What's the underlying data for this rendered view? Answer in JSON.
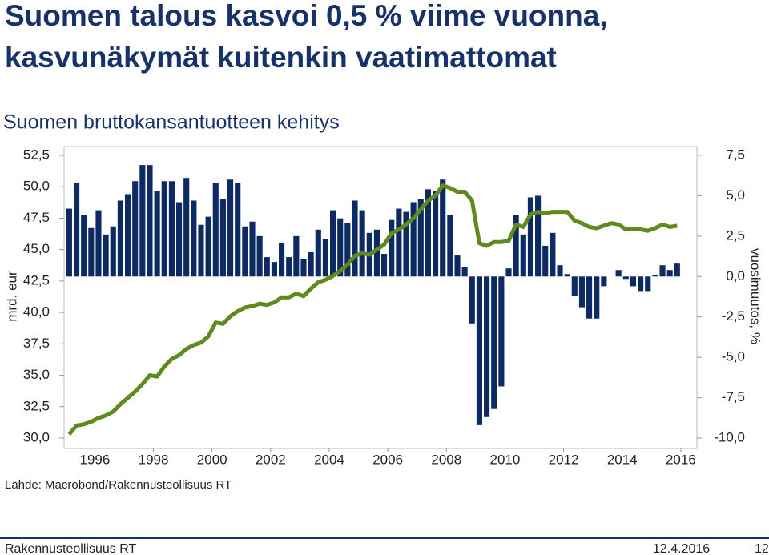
{
  "slide": {
    "title_lines": [
      "Suomen talous kasvoi 0,5 % viime vuonna,",
      "kasvunäkymät kuitenkin vaatimattomat"
    ],
    "footer_left": "Rakennusteollisuus RT",
    "date": "12.4.2016",
    "page_number": 12
  },
  "chart_data": {
    "type": "bar-line",
    "title": "Suomen bruttokansantuotteen kehitys",
    "ylabel": "mrd. eur",
    "y2label": "vuosimuutos, %",
    "source": "Lähde: Macrobond/Rakennusteollisuus RT",
    "x": [
      1995.125,
      1995.375,
      1995.625,
      1995.875,
      1996.125,
      1996.375,
      1996.625,
      1996.875,
      1997.125,
      1997.375,
      1997.625,
      1997.875,
      1998.125,
      1998.375,
      1998.625,
      1998.875,
      1999.125,
      1999.375,
      1999.625,
      1999.875,
      2000.125,
      2000.375,
      2000.625,
      2000.875,
      2001.125,
      2001.375,
      2001.625,
      2001.875,
      2002.125,
      2002.375,
      2002.625,
      2002.875,
      2003.125,
      2003.375,
      2003.625,
      2003.875,
      2004.125,
      2004.375,
      2004.625,
      2004.875,
      2005.125,
      2005.375,
      2005.625,
      2005.875,
      2006.125,
      2006.375,
      2006.625,
      2006.875,
      2007.125,
      2007.375,
      2007.625,
      2007.875,
      2008.125,
      2008.375,
      2008.625,
      2008.875,
      2009.125,
      2009.375,
      2009.625,
      2009.875,
      2010.125,
      2010.375,
      2010.625,
      2010.875,
      2011.125,
      2011.375,
      2011.625,
      2011.875,
      2012.125,
      2012.375,
      2012.625,
      2012.875,
      2013.125,
      2013.375,
      2013.625,
      2013.875,
      2014.125,
      2014.375,
      2014.625,
      2014.875,
      2015.125,
      2015.375,
      2015.625,
      2015.875
    ],
    "series": [
      {
        "type": "bar",
        "axis": "y2",
        "color": "#0d2a63",
        "values": [
          4.2,
          5.8,
          3.8,
          3.0,
          4.1,
          2.6,
          3.1,
          4.7,
          5.1,
          5.9,
          6.9,
          6.9,
          5.3,
          5.9,
          5.9,
          4.6,
          6.1,
          4.7,
          3.2,
          3.7,
          5.8,
          4.8,
          6.0,
          5.8,
          3.1,
          3.4,
          2.5,
          1.2,
          0.9,
          2.1,
          1.2,
          2.5,
          1.1,
          1.5,
          2.9,
          2.3,
          4.1,
          3.6,
          3.3,
          4.7,
          4.1,
          2.7,
          2.9,
          1.4,
          3.5,
          4.2,
          4.0,
          4.6,
          4.8,
          5.4,
          5.3,
          6.0,
          3.8,
          1.3,
          0.6,
          -2.9,
          -9.2,
          -8.7,
          -8.2,
          -6.8,
          0.5,
          3.8,
          2.6,
          4.9,
          5.0,
          1.9,
          2.7,
          0.7,
          0.15,
          -1.2,
          -1.9,
          -2.6,
          -2.6,
          -0.6,
          0.0,
          0.4,
          -0.15,
          -0.6,
          -0.9,
          -0.9,
          0.1,
          0.7,
          0.4,
          0.8
        ]
      },
      {
        "type": "line",
        "axis": "y",
        "color": "#5e8a1e",
        "values": [
          30.3,
          31.0,
          31.1,
          31.3,
          31.6,
          31.8,
          32.1,
          32.7,
          33.2,
          33.7,
          34.3,
          35.0,
          34.9,
          35.7,
          36.3,
          36.6,
          37.1,
          37.4,
          37.6,
          38.1,
          39.2,
          39.1,
          39.7,
          40.1,
          40.4,
          40.5,
          40.7,
          40.6,
          40.8,
          41.2,
          41.2,
          41.5,
          41.3,
          41.9,
          42.4,
          42.6,
          42.9,
          43.3,
          43.8,
          44.5,
          44.7,
          44.6,
          45.0,
          45.4,
          46.3,
          46.6,
          47.0,
          47.5,
          48.2,
          48.9,
          49.3,
          50.1,
          49.9,
          49.6,
          49.6,
          48.9,
          45.5,
          45.3,
          45.6,
          45.6,
          45.7,
          47.0,
          46.8,
          47.8,
          48.0,
          47.9,
          48.0,
          48.0,
          48.0,
          47.3,
          47.1,
          46.8,
          46.7,
          46.9,
          47.1,
          47.0,
          46.6,
          46.6,
          46.6,
          46.5,
          46.7,
          47.0,
          46.8,
          46.9
        ]
      }
    ],
    "xlim": [
      1994.95,
      2016.55
    ],
    "xticks": [
      1996,
      1998,
      2000,
      2002,
      2004,
      2006,
      2008,
      2010,
      2012,
      2014,
      2016
    ],
    "ylim": [
      30,
      52.5
    ],
    "yticks": [
      {
        "value": 30,
        "label": "30,0"
      },
      {
        "value": 32.5,
        "label": "32,5"
      },
      {
        "value": 35,
        "label": "35,0"
      },
      {
        "value": 37.5,
        "label": "37,5"
      },
      {
        "value": 40,
        "label": "40,0"
      },
      {
        "value": 42.5,
        "label": "42,5"
      },
      {
        "value": 45,
        "label": "45,0"
      },
      {
        "value": 47.5,
        "label": "47,5"
      },
      {
        "value": 50,
        "label": "50,0"
      },
      {
        "value": 52.5,
        "label": "52,5"
      }
    ],
    "y2lim": [
      -10,
      7.5
    ],
    "y2ticks": [
      {
        "value": -10,
        "label": "-10,0"
      },
      {
        "value": -7.5,
        "label": "-7,5"
      },
      {
        "value": -5,
        "label": "-5,0"
      },
      {
        "value": -2.5,
        "label": "-2,5"
      },
      {
        "value": 0,
        "label": "0,0"
      },
      {
        "value": 2.5,
        "label": "2,5"
      },
      {
        "value": 5,
        "label": "5,0"
      },
      {
        "value": 7.5,
        "label": "7,5"
      }
    ]
  }
}
